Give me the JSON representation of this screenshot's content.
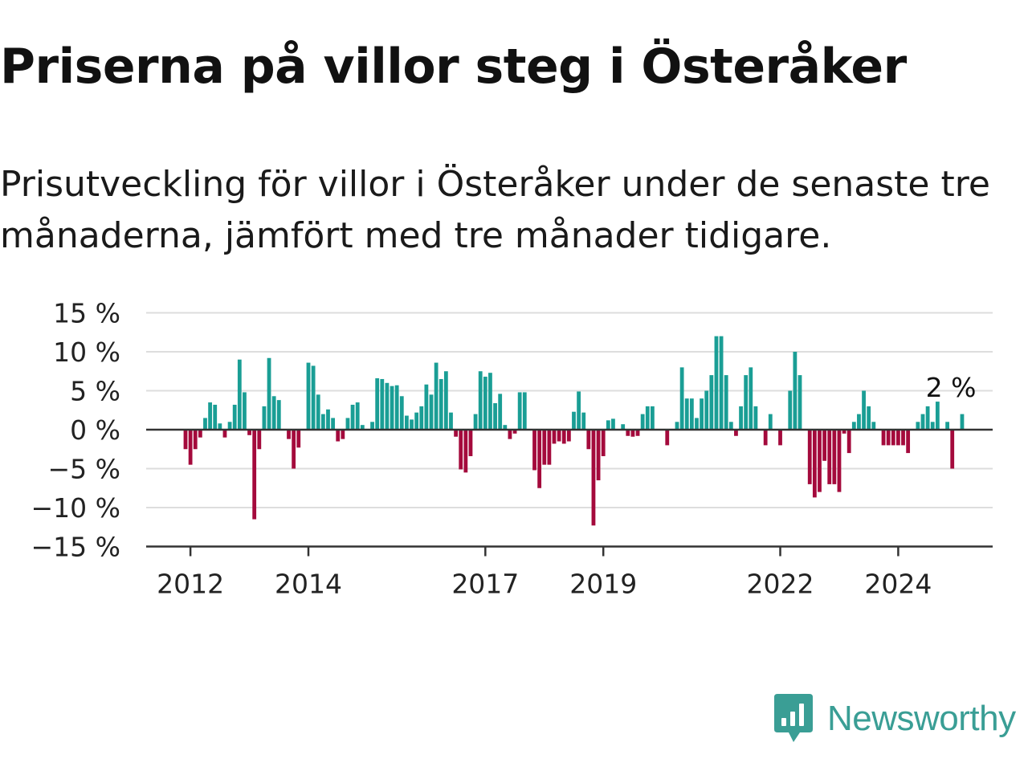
{
  "title": "Priserna på villor steg i Österåker",
  "subtitle": "Prisutveckling för villor i Österåker under de senaste tre månaderna, jämfört med tre månader tidigare.",
  "brand": {
    "name": "Newsworthy"
  },
  "colors": {
    "positive": "#1a9e95",
    "negative": "#a40a3c",
    "grid": "#dddddd",
    "axis": "#333333",
    "brand": "#3a9e95"
  },
  "chart_data": {
    "type": "bar",
    "title": "",
    "xlabel": "",
    "ylabel": "",
    "ylim": [
      -15,
      15
    ],
    "yticks": [
      15,
      10,
      5,
      0,
      -5,
      -10,
      -15
    ],
    "ytick_labels": [
      "15 %",
      "10 %",
      "5 %",
      "0 %",
      "−5 %",
      "−10 %",
      "−15 %"
    ],
    "xtick_labels": [
      "2012",
      "2014",
      "2017",
      "2019",
      "2022",
      "2024"
    ],
    "xtick_positions": [
      2012,
      2014,
      2017,
      2019,
      2022,
      2024
    ],
    "annotation": "2 %",
    "grid": true,
    "start": "2011-12",
    "values": [
      -2.5,
      -4.5,
      -2.5,
      -1,
      1.5,
      3.5,
      3.2,
      0.8,
      -1,
      1,
      3.2,
      9,
      4.8,
      -0.7,
      -11.5,
      -2.5,
      3,
      9.2,
      4.3,
      3.8,
      0,
      -1.2,
      -5,
      -2.3,
      0,
      8.6,
      8.2,
      4.5,
      2,
      2.6,
      1.5,
      -1.5,
      -1.2,
      1.5,
      3.2,
      3.5,
      0.6,
      0,
      1,
      6.6,
      6.5,
      6,
      5.6,
      5.7,
      4.3,
      1.8,
      1.3,
      2.2,
      3,
      5.8,
      4.5,
      8.6,
      6.5,
      7.5,
      2.2,
      -0.9,
      -5.1,
      -5.5,
      -3.4,
      2,
      7.5,
      6.8,
      7.3,
      3.4,
      4.6,
      0.6,
      -1.2,
      -0.5,
      4.8,
      4.8,
      0,
      -5.2,
      -7.5,
      -4.5,
      -4.5,
      -1.8,
      -1.5,
      -1.8,
      -1.5,
      2.3,
      4.9,
      2.2,
      -2.5,
      -12.3,
      -6.5,
      -3.4,
      1.2,
      1.4,
      0,
      0.7,
      -0.8,
      -0.9,
      -0.8,
      2,
      3,
      3,
      0,
      0,
      -2,
      0,
      1,
      8,
      4,
      4,
      1.5,
      4,
      5,
      7,
      12,
      12,
      7,
      1,
      -0.8,
      3,
      7,
      8,
      3,
      0,
      -2,
      2,
      0,
      -2,
      0,
      5,
      10,
      7,
      0,
      -7,
      -8.7,
      -8,
      -4,
      -7,
      -7,
      -8,
      -0.5,
      -3,
      1,
      2,
      5,
      3,
      1,
      0,
      -2,
      -2,
      -2,
      -2,
      -2,
      -3,
      0,
      1,
      2,
      3,
      1,
      3.6,
      0,
      1,
      -5,
      0,
      2
    ]
  }
}
